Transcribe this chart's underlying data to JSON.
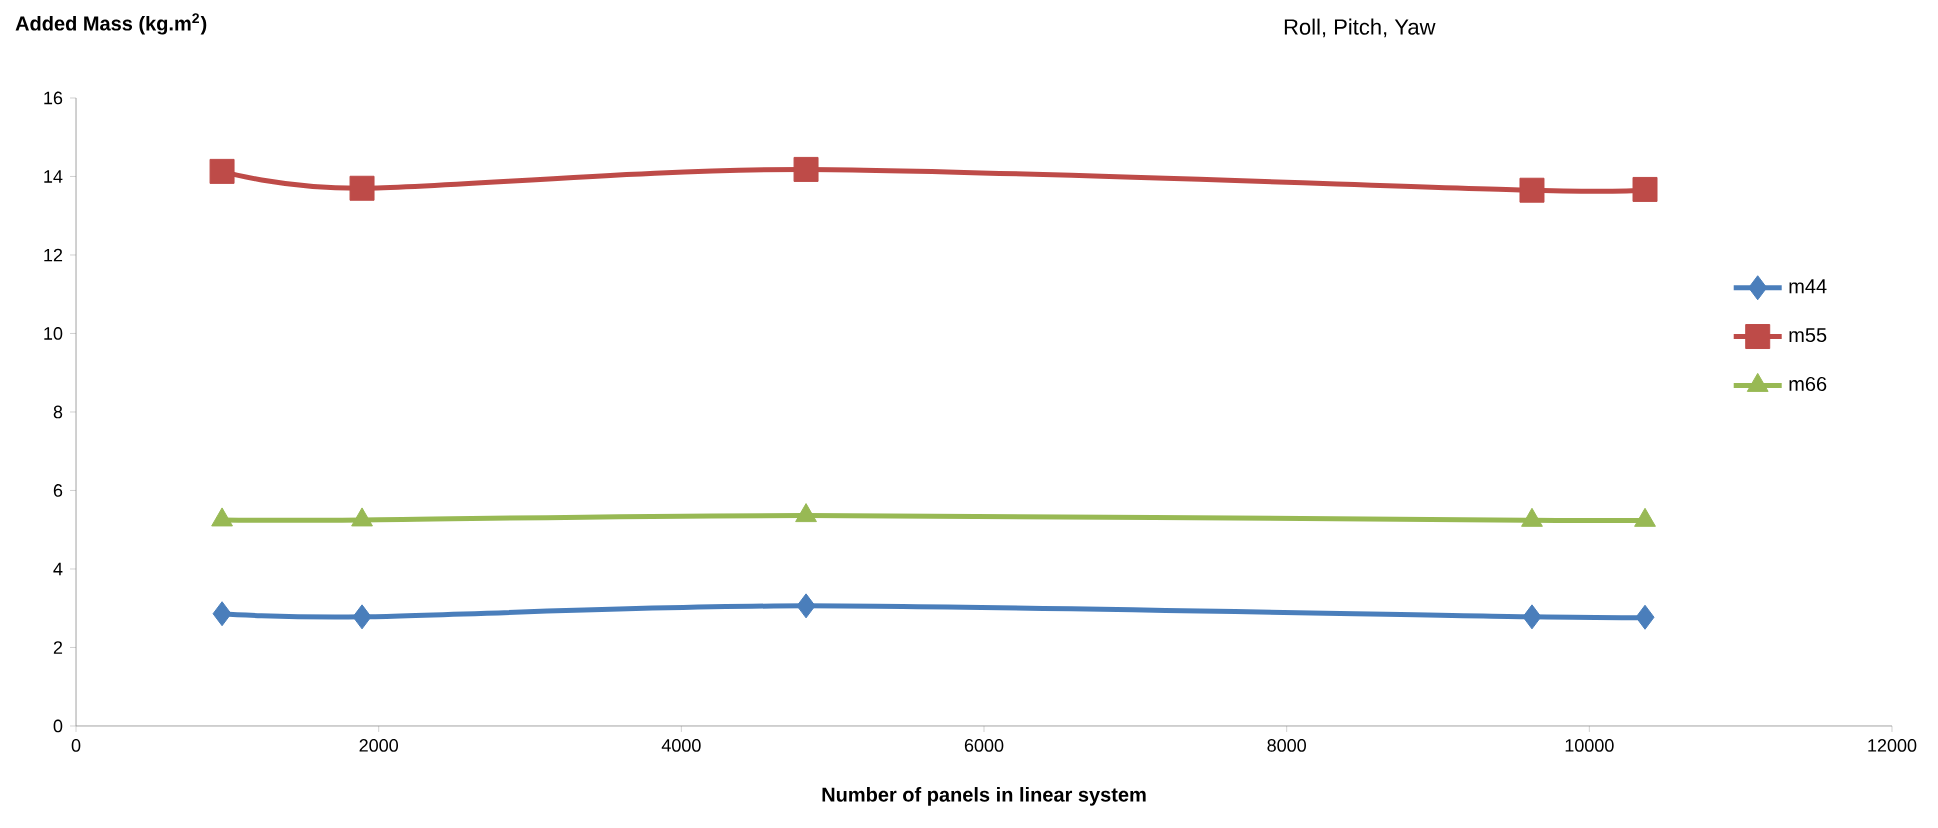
{
  "chart_data": {
    "type": "line",
    "title": "Roll, Pitch, Yaw",
    "ylabel": "Added Mass (kg.m$^{2}$)",
    "xlabel": "Number of panels in linear system",
    "x": [
      965,
      1890,
      4824,
      9621,
      10368
    ],
    "series": [
      {
        "name": "m44",
        "color": "#4a7ebb",
        "marker": "diamond",
        "values": [
          2.86,
          2.78,
          3.06,
          2.78,
          2.77
        ]
      },
      {
        "name": "m55",
        "color": "#be4b48",
        "marker": "square",
        "values": [
          14.13,
          13.7,
          14.18,
          13.65,
          13.67
        ]
      },
      {
        "name": "m66",
        "color": "#98b954",
        "marker": "triangle",
        "values": [
          5.25,
          5.25,
          5.36,
          5.24,
          5.24
        ]
      }
    ],
    "xlim": [
      0,
      12000
    ],
    "xticks": [
      0,
      2000,
      4000,
      6000,
      8000,
      10000,
      12000
    ],
    "ylim": [
      0,
      16
    ],
    "yticks": [
      0,
      2,
      4,
      6,
      8,
      10,
      12,
      14,
      16
    ],
    "grid": false,
    "legend": "right",
    "line_style": "solid"
  }
}
